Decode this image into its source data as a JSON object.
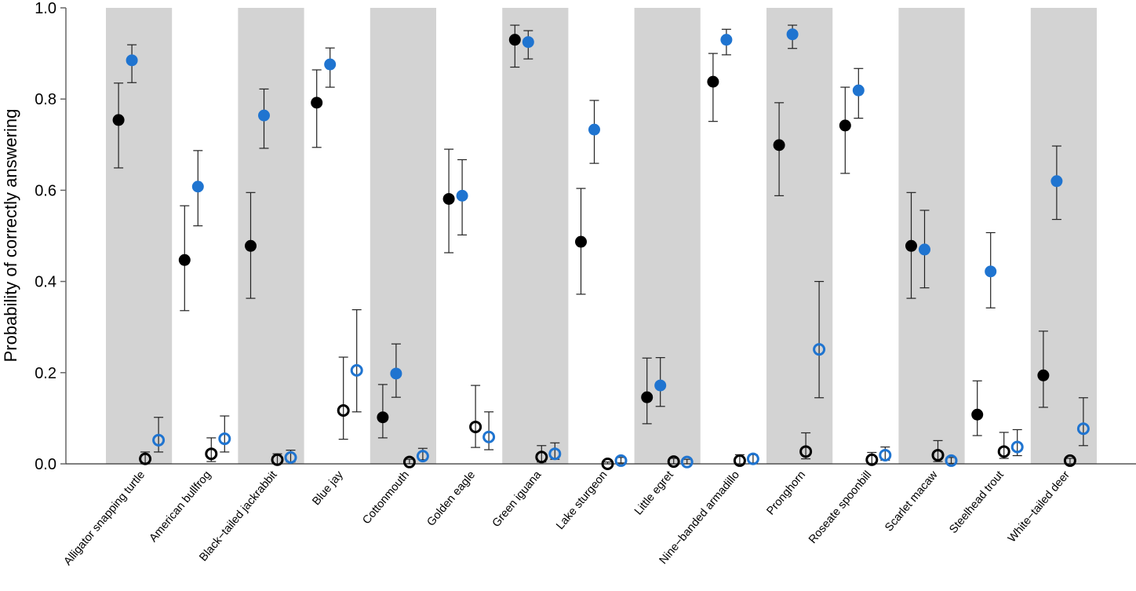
{
  "chart_data": {
    "type": "scatter",
    "title": "",
    "xlabel": "",
    "ylabel": "Probability of correctly answering",
    "ylim": [
      0,
      1
    ],
    "yticks": [
      "0.0",
      "0.2",
      "0.4",
      "0.6",
      "0.8",
      "1.0"
    ],
    "grid": false,
    "legend": "none",
    "alternating_shading": true,
    "colors": {
      "black": "#000000",
      "blue": "#1f74d0",
      "shade": "#d3d3d3",
      "axis": "#666666"
    },
    "categories": [
      "Alligator snapping turtle",
      "American bullfrog",
      "Black−tailed jackrabbit",
      "Blue jay",
      "Cottonmouth",
      "Golden eagle",
      "Green iguana",
      "Lake sturgeon",
      "Little egret",
      "Nine−banded armadillo",
      "Pronghorn",
      "Roseate spoonbill",
      "Scarlet macaw",
      "Steelhead trout",
      "White−tailed deer"
    ],
    "series": [
      {
        "name": "black-filled",
        "color": "black",
        "filled": true,
        "values": [
          0.754,
          0.447,
          0.478,
          0.792,
          0.102,
          0.581,
          0.93,
          0.487,
          0.146,
          0.838,
          0.699,
          0.742,
          0.478,
          0.108,
          0.194
        ],
        "lower": [
          0.649,
          0.336,
          0.363,
          0.694,
          0.057,
          0.463,
          0.87,
          0.372,
          0.088,
          0.751,
          0.588,
          0.637,
          0.363,
          0.062,
          0.124
        ],
        "upper": [
          0.835,
          0.566,
          0.595,
          0.864,
          0.174,
          0.69,
          0.962,
          0.604,
          0.232,
          0.9,
          0.792,
          0.826,
          0.595,
          0.182,
          0.291
        ]
      },
      {
        "name": "blue-filled",
        "color": "blue",
        "filled": true,
        "values": [
          0.885,
          0.608,
          0.764,
          0.876,
          0.198,
          0.588,
          0.925,
          0.733,
          0.172,
          0.93,
          0.942,
          0.819,
          0.47,
          0.422,
          0.62
        ],
        "lower": [
          0.836,
          0.522,
          0.692,
          0.826,
          0.146,
          0.502,
          0.888,
          0.659,
          0.126,
          0.897,
          0.911,
          0.758,
          0.386,
          0.342,
          0.536
        ],
        "upper": [
          0.919,
          0.687,
          0.822,
          0.912,
          0.263,
          0.667,
          0.95,
          0.797,
          0.233,
          0.953,
          0.962,
          0.867,
          0.556,
          0.507,
          0.697
        ]
      },
      {
        "name": "black-open",
        "color": "black",
        "filled": false,
        "values": [
          0.011,
          0.022,
          0.009,
          0.117,
          0.004,
          0.081,
          0.015,
          0.0,
          0.005,
          0.007,
          0.027,
          0.009,
          0.019,
          0.027,
          0.007
        ],
        "lower": [
          0.0,
          0.005,
          0.0,
          0.054,
          0.0,
          0.036,
          0.004,
          0.0,
          0.0,
          0.0,
          0.011,
          0.001,
          0.005,
          0.012,
          0.0
        ],
        "upper": [
          0.026,
          0.057,
          0.022,
          0.234,
          0.01,
          0.172,
          0.04,
          0.004,
          0.012,
          0.02,
          0.068,
          0.025,
          0.051,
          0.069,
          0.012
        ]
      },
      {
        "name": "blue-open",
        "color": "blue",
        "filled": false,
        "values": [
          0.052,
          0.055,
          0.014,
          0.205,
          0.017,
          0.059,
          0.022,
          0.007,
          0.004,
          0.011,
          0.251,
          0.019,
          0.007,
          0.037,
          0.077
        ],
        "lower": [
          0.026,
          0.026,
          0.004,
          0.114,
          0.009,
          0.031,
          0.01,
          0.002,
          0.0,
          0.002,
          0.145,
          0.008,
          0.001,
          0.018,
          0.04
        ],
        "upper": [
          0.102,
          0.105,
          0.03,
          0.338,
          0.034,
          0.114,
          0.046,
          0.014,
          0.01,
          0.02,
          0.4,
          0.037,
          0.014,
          0.075,
          0.145
        ]
      }
    ]
  }
}
